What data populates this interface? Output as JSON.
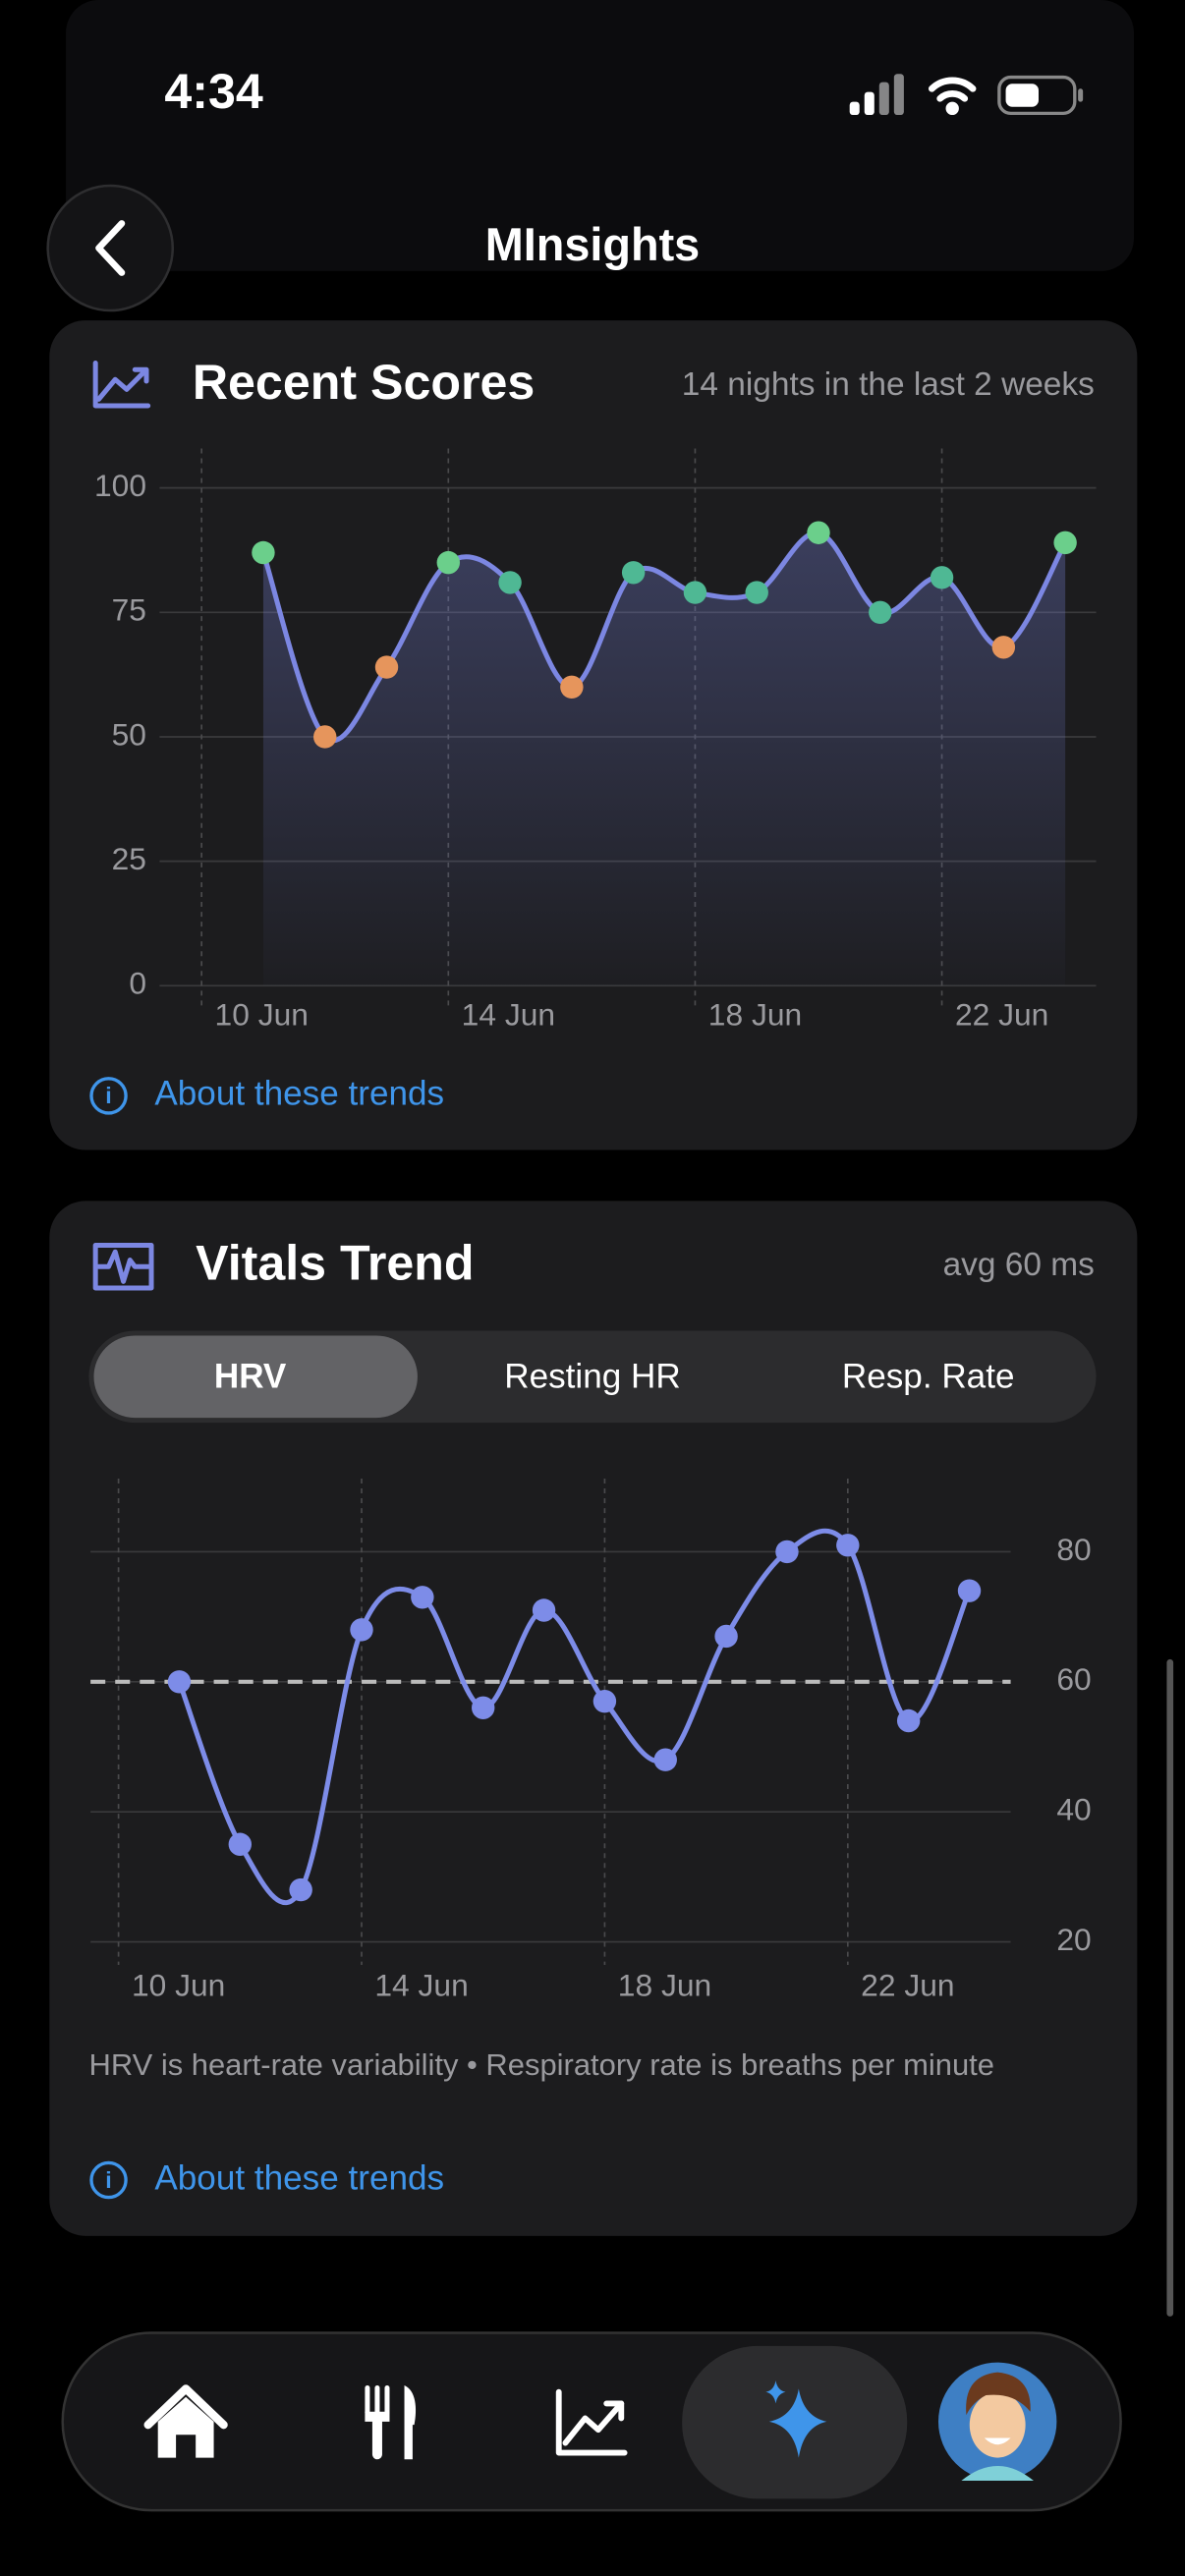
{
  "status_bar": {
    "time": "4:34"
  },
  "header": {
    "title": "MInsights"
  },
  "chart_data": [
    {
      "type": "line",
      "title": "Recent Scores",
      "subtitle": "14 nights in the last 2 weeks",
      "x": [
        11,
        12,
        13,
        14,
        15,
        16,
        17,
        18,
        19,
        20,
        21,
        22,
        23,
        24
      ],
      "values": [
        87,
        50,
        64,
        85,
        81,
        60,
        83,
        79,
        79,
        91,
        75,
        82,
        68,
        89
      ],
      "point_colors": [
        "#6bcf8b",
        "#e6955c",
        "#e6955c",
        "#6bcf8b",
        "#4fb894",
        "#e6955c",
        "#4fb894",
        "#4fb894",
        "#4fb894",
        "#6bcf8b",
        "#4fb894",
        "#4fb894",
        "#e6955c",
        "#6bcf8b"
      ],
      "color": "#7c87e2",
      "area": true,
      "xlim": [
        8.2,
        24.5
      ],
      "xticks": [
        {
          "value": 10,
          "label": "10 Jun"
        },
        {
          "value": 14,
          "label": "14 Jun"
        },
        {
          "value": 18,
          "label": "18 Jun"
        },
        {
          "value": 22,
          "label": "22 Jun"
        }
      ],
      "ylim": [
        0,
        100
      ],
      "yticks": [
        0,
        25,
        50,
        75,
        100
      ],
      "y_axis_side": "left",
      "grid": true,
      "footer_link": "About these trends"
    },
    {
      "type": "line",
      "title": "Vitals Trend",
      "subtitle": "avg 60 ms",
      "tabs": [
        "HRV",
        "Resting HR",
        "Resp. Rate"
      ],
      "active_tab": 0,
      "x": [
        11,
        12,
        13,
        14,
        15,
        16,
        17,
        18,
        19,
        20,
        21,
        22,
        23,
        24
      ],
      "values": [
        60,
        35,
        28,
        68,
        73,
        56,
        71,
        57,
        48,
        67,
        80,
        81,
        54,
        74
      ],
      "color": "#7d8ce8",
      "area": false,
      "average": 60,
      "xlim": [
        9.54,
        24.68
      ],
      "xticks": [
        {
          "value": 10,
          "label": "10 Jun"
        },
        {
          "value": 14,
          "label": "14 Jun"
        },
        {
          "value": 18,
          "label": "18 Jun"
        },
        {
          "value": 22,
          "label": "22 Jun"
        }
      ],
      "ylim": [
        20,
        91
      ],
      "yticks": [
        20,
        40,
        60,
        80
      ],
      "y_axis_side": "right",
      "grid": true,
      "note": "HRV is heart-rate variability • Respiratory rate is breaths per minute",
      "footer_link": "About these trends"
    }
  ]
}
